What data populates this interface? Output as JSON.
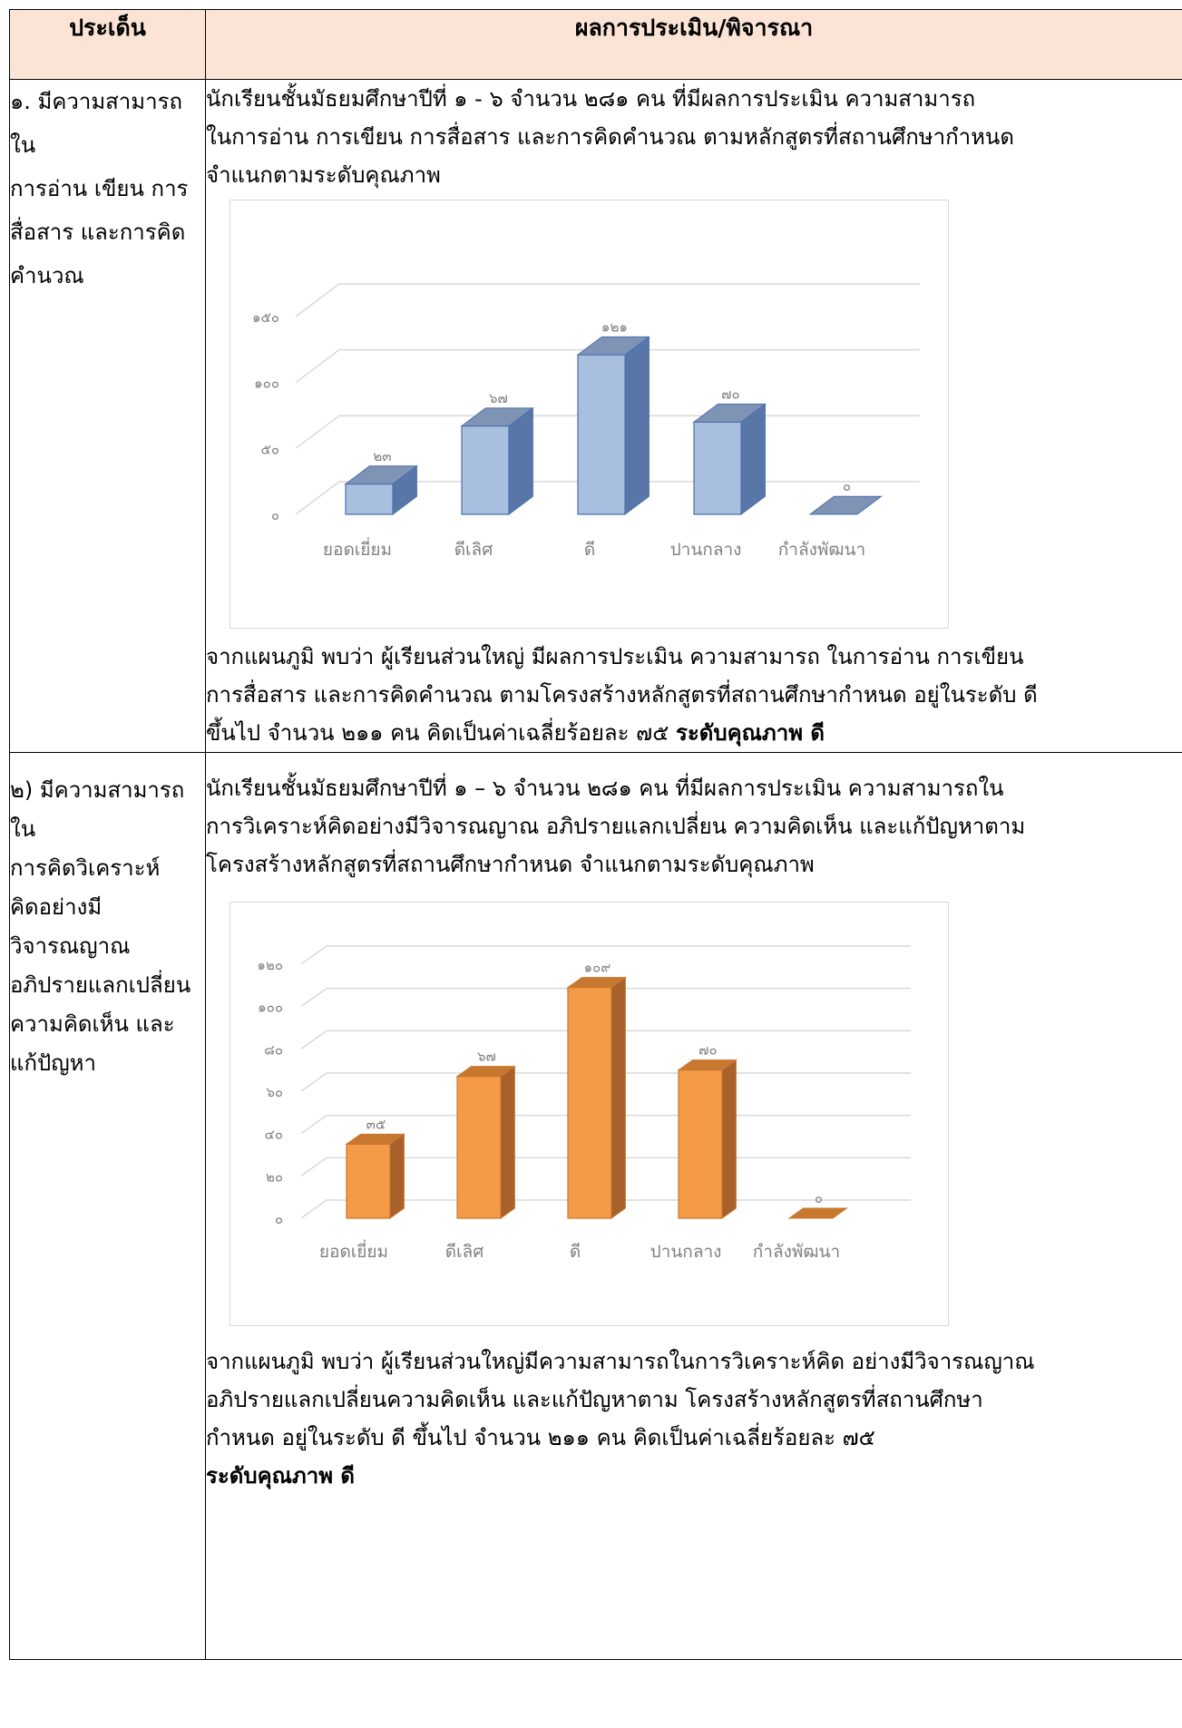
{
  "table": {
    "header": {
      "col1": "ประเด็น",
      "col2": "ผลการประเมิน/พิจารณา"
    },
    "rows": [
      {
        "issue_lines": [
          "๑. มีความสามารถใน",
          "การอ่าน เขียน การ",
          "สื่อสาร และการคิด",
          "คำนวณ"
        ],
        "intro_lines": [
          "นักเรียนชั้นมัธยมศึกษาปีที่ ๑ - ๖ จำนวน ๒๘๑ คน ที่มีผลการประเมิน ความสามารถ",
          "ในการอ่าน การเขียน การสื่อสาร และการคิดคำนวณ  ตามหลักสูตรที่สถานศึกษากำหนด",
          "จำแนกตามระดับคุณภาพ"
        ],
        "conclusion_lines": [
          "จากแผนภูมิ พบว่า ผู้เรียนส่วนใหญ่ มีผลการประเมิน ความสามารถ ในการอ่าน การเขียน",
          "การสื่อสาร และการคิดคำนวณ  ตามโครงสร้างหลักสูตรที่สถานศึกษากำหนด อยู่ในระดับ ดี",
          "ขึ้นไป  จำนวน  ๒๑๑  คน   คิดเป็นค่าเฉลี่ยร้อยละ ๗๕ "
        ],
        "conclusion_bold": "ระดับคุณภาพ  ดี"
      },
      {
        "issue_lines": [
          "๒) มีความสามารถใน",
          "การคิดวิเคราะห์",
          "คิดอย่างมีวิจารณญาณ",
          "อภิปรายแลกเปลี่ยน",
          "ความคิดเห็น และ",
          "แก้ปัญหา"
        ],
        "intro_lines": [
          "นักเรียนชั้นมัธยมศึกษาปีที่ ๑ – ๖ จำนวน ๒๘๑ คน ที่มีผลการประเมิน ความสามารถใน",
          "การวิเคราะห์คิดอย่างมีวิจารณญาณ อภิปรายแลกเปลี่ยน ความคิดเห็น และแก้ปัญหาตาม",
          "โครงสร้างหลักสูตรที่สถานศึกษากำหนด  จำแนกตามระดับคุณภาพ"
        ],
        "conclusion_lines": [
          "จากแผนภูมิ พบว่า ผู้เรียนส่วนใหญ่มีความสามารถในการวิเคราะห์คิด อย่างมีวิจารณญาณ",
          "อภิปรายแลกเปลี่ยนความคิดเห็น และแก้ปัญหาตาม โครงสร้างหลักสูตรที่สถานศึกษา",
          "กำหนด อยู่ในระดับ ดี  ขึ้นไป จำนวน  ๒๑๑  คน คิดเป็นค่าเฉลี่ยร้อยละ ๗๕"
        ],
        "conclusion_bold": " ระดับคุณภาพ  ดี"
      }
    ]
  },
  "chart_data": [
    {
      "type": "bar",
      "categories": [
        "ยอดเยี่ยม",
        "ดีเลิศ",
        "ดี",
        "ปานกลาง",
        "กำลังพัฒนา"
      ],
      "values": [
        23,
        67,
        121,
        70,
        0
      ],
      "value_labels": [
        "๒๓",
        "๖๗",
        "๑๒๑",
        "๗๐",
        "๐"
      ],
      "yticks": [
        0,
        50,
        100,
        150
      ],
      "ytick_labels": [
        "๐",
        "๕๐",
        "๑๐๐",
        "๑๕๐"
      ],
      "ylim": [
        0,
        150
      ],
      "grid": true,
      "bar_color": "#a9bfe0",
      "bar_side_color": "#5877a8",
      "bar_top_color": "#7f93b5",
      "bar_edge_color": "#4a6fae"
    },
    {
      "type": "bar",
      "categories": [
        "ยอดเยี่ยม",
        "ดีเลิศ",
        "ดี",
        "ปานกลาง",
        "กำลังพัฒนา"
      ],
      "values": [
        35,
        67,
        109,
        70,
        0
      ],
      "value_labels": [
        "๓๕",
        "๖๗",
        "๑๐๙",
        "๗๐",
        "๐"
      ],
      "yticks": [
        0,
        20,
        40,
        60,
        80,
        100,
        120
      ],
      "ytick_labels": [
        "๐",
        "๒๐",
        "๔๐",
        "๖๐",
        "๘๐",
        "๑๐๐",
        "๑๒๐"
      ],
      "ylim": [
        0,
        120
      ],
      "grid": true,
      "bar_color": "#f59a46",
      "bar_side_color": "#a8612a",
      "bar_top_color": "#c8782e",
      "bar_edge_color": "#c8782e"
    }
  ]
}
